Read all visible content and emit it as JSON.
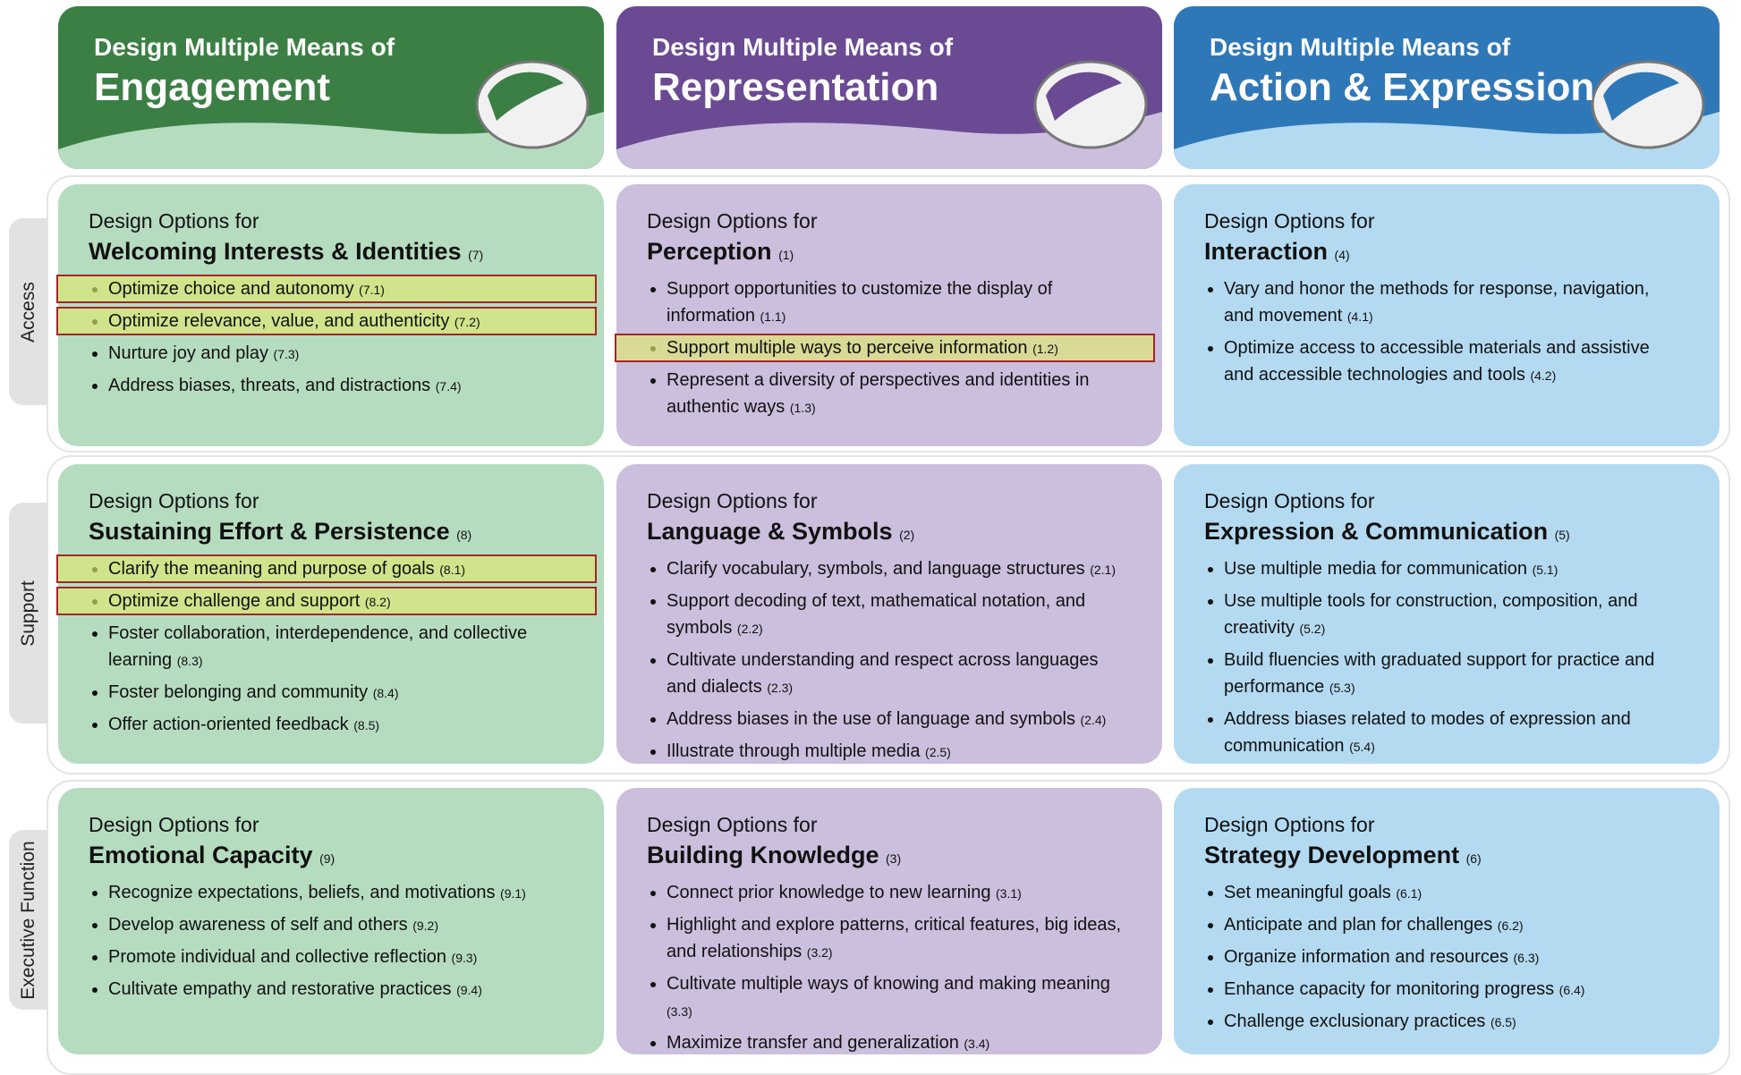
{
  "columns": [
    {
      "prefix": "Design Multiple Means of",
      "title": "Engagement",
      "color": "#3b7f45",
      "light": "#b6dcc0"
    },
    {
      "prefix": "Design Multiple Means of",
      "title": "Representation",
      "color": "#6b4a94",
      "light": "#cbbfdd"
    },
    {
      "prefix": "Design Multiple Means of",
      "title": "Action & Expression",
      "color": "#2f78b8",
      "light": "#b4daf1"
    }
  ],
  "rows": [
    {
      "label": "Access",
      "cells": [
        {
          "prefix": "Design Options for",
          "title": "Welcoming Interests & Identities",
          "number": "(7)",
          "items": [
            {
              "text": "Optimize choice and autonomy",
              "code": "(7.1)",
              "highlighted": true
            },
            {
              "text": "Optimize relevance, value, and authenticity",
              "code": "(7.2)",
              "highlighted": true
            },
            {
              "text": "Nurture joy and play",
              "code": "(7.3)",
              "highlighted": false
            },
            {
              "text": "Address biases, threats, and distractions",
              "code": "(7.4)",
              "highlighted": false
            }
          ]
        },
        {
          "prefix": "Design Options for",
          "title": "Perception",
          "number": "(1)",
          "items": [
            {
              "text": "Support opportunities to customize the display of information",
              "code": "(1.1)",
              "highlighted": false
            },
            {
              "text": "Support multiple ways to perceive information",
              "code": "(1.2)",
              "highlighted": true
            },
            {
              "text": "Represent a diversity of perspectives and identities in authentic ways",
              "code": "(1.3)",
              "highlighted": false
            }
          ]
        },
        {
          "prefix": "Design Options for",
          "title": "Interaction",
          "number": "(4)",
          "items": [
            {
              "text": "Vary and honor the methods for response, navigation, and movement",
              "code": "(4.1)",
              "highlighted": false
            },
            {
              "text": "Optimize access to accessible materials and assistive and accessible technologies and tools",
              "code": "(4.2)",
              "highlighted": false
            }
          ]
        }
      ]
    },
    {
      "label": "Support",
      "cells": [
        {
          "prefix": "Design Options for",
          "title": "Sustaining Effort & Persistence",
          "number": "(8)",
          "items": [
            {
              "text": "Clarify the meaning and purpose of goals",
              "code": "(8.1)",
              "highlighted": true
            },
            {
              "text": "Optimize challenge and support",
              "code": "(8.2)",
              "highlighted": true
            },
            {
              "text": "Foster collaboration, interdependence, and collective learning",
              "code": "(8.3)",
              "highlighted": false
            },
            {
              "text": "Foster belonging and community",
              "code": "(8.4)",
              "highlighted": false
            },
            {
              "text": "Offer action-oriented feedback",
              "code": "(8.5)",
              "highlighted": false
            }
          ]
        },
        {
          "prefix": "Design Options for",
          "title": "Language & Symbols",
          "number": "(2)",
          "items": [
            {
              "text": "Clarify vocabulary, symbols, and language structures",
              "code": "(2.1)",
              "highlighted": false
            },
            {
              "text": "Support decoding of text, mathematical notation, and symbols",
              "code": "(2.2)",
              "highlighted": false
            },
            {
              "text": "Cultivate understanding and respect across languages and dialects",
              "code": "(2.3)",
              "highlighted": false
            },
            {
              "text": "Address biases in the use of language and symbols",
              "code": "(2.4)",
              "highlighted": false
            },
            {
              "text": "Illustrate through multiple media",
              "code": "(2.5)",
              "highlighted": false
            }
          ]
        },
        {
          "prefix": "Design Options for",
          "title": "Expression & Communication",
          "number": "(5)",
          "items": [
            {
              "text": "Use multiple media for communication",
              "code": "(5.1)",
              "highlighted": false
            },
            {
              "text": "Use multiple tools for construction, composition, and creativity",
              "code": "(5.2)",
              "highlighted": false
            },
            {
              "text": "Build fluencies with graduated support for practice and performance",
              "code": "(5.3)",
              "highlighted": false
            },
            {
              "text": "Address biases related to modes of expression and communication",
              "code": "(5.4)",
              "highlighted": false
            }
          ]
        }
      ]
    },
    {
      "label": "Executive Function",
      "cells": [
        {
          "prefix": "Design Options for",
          "title": "Emotional Capacity",
          "number": "(9)",
          "items": [
            {
              "text": "Recognize expectations, beliefs, and motivations",
              "code": "(9.1)",
              "highlighted": false
            },
            {
              "text": "Develop awareness of self and others",
              "code": "(9.2)",
              "highlighted": false
            },
            {
              "text": "Promote individual and collective reflection",
              "code": "(9.3)",
              "highlighted": false
            },
            {
              "text": "Cultivate empathy and restorative practices",
              "code": "(9.4)",
              "highlighted": false
            }
          ]
        },
        {
          "prefix": "Design Options for",
          "title": "Building Knowledge",
          "number": "(3)",
          "items": [
            {
              "text": "Connect prior knowledge to new learning",
              "code": "(3.1)",
              "highlighted": false
            },
            {
              "text": "Highlight and explore patterns, critical features, big ideas, and relationships",
              "code": "(3.2)",
              "highlighted": false
            },
            {
              "text": "Cultivate multiple ways of knowing and making meaning",
              "code": "(3.3)",
              "highlighted": false
            },
            {
              "text": "Maximize transfer and generalization",
              "code": "(3.4)",
              "highlighted": false
            }
          ]
        },
        {
          "prefix": "Design Options for",
          "title": "Strategy Development",
          "number": "(6)",
          "items": [
            {
              "text": "Set meaningful goals",
              "code": "(6.1)",
              "highlighted": false
            },
            {
              "text": "Anticipate and plan for challenges",
              "code": "(6.2)",
              "highlighted": false
            },
            {
              "text": "Organize information and resources",
              "code": "(6.3)",
              "highlighted": false
            },
            {
              "text": "Enhance capacity for monitoring progress",
              "code": "(6.4)",
              "highlighted": false
            },
            {
              "text": "Challenge exclusionary practices",
              "code": "(6.5)",
              "highlighted": false
            }
          ]
        }
      ]
    }
  ]
}
